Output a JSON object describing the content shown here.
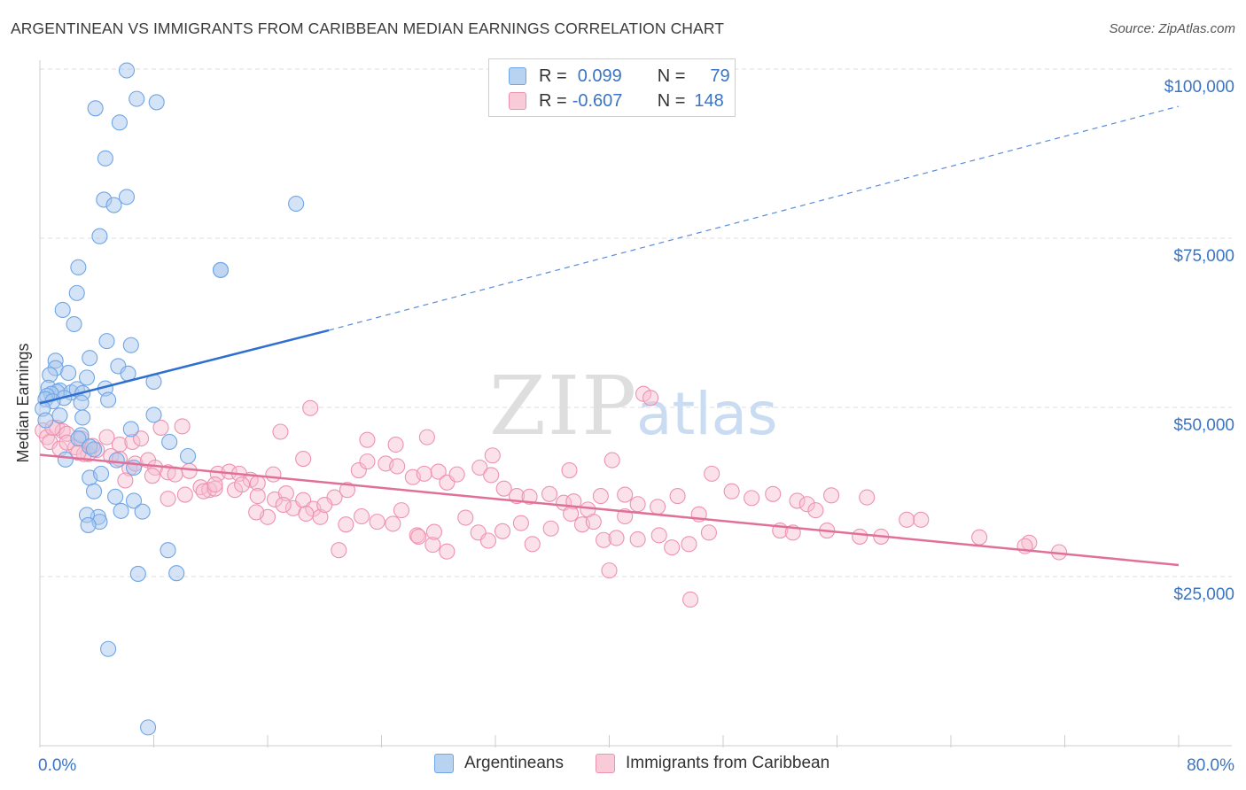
{
  "header": {
    "title": "ARGENTINEAN VS IMMIGRANTS FROM CARIBBEAN MEDIAN EARNINGS CORRELATION CHART",
    "source": "Source: ZipAtlas.com"
  },
  "watermark": {
    "zip": "ZIP",
    "atlas": "atlas"
  },
  "legend": {
    "rows": [
      {
        "r_label": "R =",
        "r_value": "0.099",
        "n_label": "N =",
        "n_value": "79",
        "color": "#6fa6e6"
      },
      {
        "r_label": "R =",
        "r_value": "-0.607",
        "n_label": "N =",
        "n_value": "148",
        "color": "#f4a3bd"
      }
    ]
  },
  "colors": {
    "blue_fill": "#a9c8ee",
    "blue_stroke": "#6fa6e6",
    "blue_line": "#2f6fd0",
    "pink_fill": "#f7bfd0",
    "pink_stroke": "#ee92b1",
    "pink_line": "#e0709a",
    "axis_text": "#3a74c4",
    "grid": "#dddddd"
  },
  "chart_data": {
    "type": "scatter",
    "title": "ARGENTINEAN VS IMMIGRANTS FROM CARIBBEAN MEDIAN EARNINGS CORRELATION CHART",
    "xlabel": "",
    "ylabel": "Median Earnings",
    "xlim": [
      0,
      80
    ],
    "ylim": [
      0,
      100000
    ],
    "x_tick_labels": [
      "0.0%",
      "80.0%"
    ],
    "y_ticks": [
      25000,
      50000,
      75000,
      100000
    ],
    "y_tick_labels": [
      "$25,000",
      "$50,000",
      "$75,000",
      "$100,000"
    ],
    "grid": true,
    "legend_position": "top-center",
    "series": [
      {
        "name": "Argentineans",
        "R": 0.099,
        "N": 79,
        "trend": {
          "x_solid": [
            0,
            20.3
          ],
          "y_solid": [
            50600,
            61400
          ],
          "x_dashed": [
            20.3,
            80
          ],
          "y_dashed": [
            61400,
            94500
          ]
        },
        "points": [
          [
            6.1,
            99800
          ],
          [
            6.8,
            95600
          ],
          [
            8.2,
            95100
          ],
          [
            3.9,
            94200
          ],
          [
            5.6,
            92100
          ],
          [
            4.6,
            86800
          ],
          [
            4.5,
            80700
          ],
          [
            6.1,
            81100
          ],
          [
            5.2,
            79900
          ],
          [
            18.0,
            80100
          ],
          [
            4.2,
            75300
          ],
          [
            12.7,
            70300
          ],
          [
            12.7,
            70300
          ],
          [
            2.7,
            70700
          ],
          [
            2.6,
            66900
          ],
          [
            1.6,
            64400
          ],
          [
            2.4,
            62300
          ],
          [
            4.7,
            59800
          ],
          [
            6.4,
            59200
          ],
          [
            3.5,
            57300
          ],
          [
            1.1,
            56900
          ],
          [
            5.5,
            56100
          ],
          [
            1.1,
            55800
          ],
          [
            2.0,
            55100
          ],
          [
            0.7,
            54800
          ],
          [
            6.2,
            55000
          ],
          [
            3.3,
            54400
          ],
          [
            8.0,
            53800
          ],
          [
            0.6,
            52900
          ],
          [
            4.6,
            52800
          ],
          [
            1.4,
            52500
          ],
          [
            2.2,
            52200
          ],
          [
            1.2,
            52300
          ],
          [
            2.6,
            52700
          ],
          [
            0.8,
            52000
          ],
          [
            3.0,
            52100
          ],
          [
            0.5,
            51700
          ],
          [
            1.7,
            51400
          ],
          [
            4.8,
            51100
          ],
          [
            0.4,
            51200
          ],
          [
            0.9,
            50900
          ],
          [
            2.9,
            50700
          ],
          [
            0.2,
            49800
          ],
          [
            1.4,
            48800
          ],
          [
            8.0,
            48900
          ],
          [
            3.0,
            48500
          ],
          [
            0.4,
            48100
          ],
          [
            6.4,
            46800
          ],
          [
            2.9,
            45900
          ],
          [
            2.7,
            45400
          ],
          [
            9.1,
            44900
          ],
          [
            3.5,
            44200
          ],
          [
            3.8,
            43800
          ],
          [
            10.4,
            42800
          ],
          [
            5.4,
            42200
          ],
          [
            1.8,
            42300
          ],
          [
            6.6,
            41100
          ],
          [
            3.5,
            39600
          ],
          [
            4.3,
            40200
          ],
          [
            3.8,
            37600
          ],
          [
            6.6,
            36200
          ],
          [
            5.3,
            36800
          ],
          [
            4.1,
            33800
          ],
          [
            4.2,
            33100
          ],
          [
            3.3,
            34100
          ],
          [
            3.4,
            32600
          ],
          [
            5.7,
            34700
          ],
          [
            7.2,
            34600
          ],
          [
            9.0,
            28900
          ],
          [
            9.6,
            25500
          ],
          [
            6.9,
            25400
          ],
          [
            4.8,
            14300
          ],
          [
            7.6,
            2700
          ]
        ]
      },
      {
        "name": "Immigrants from Caribbean",
        "R": -0.607,
        "N": 148,
        "trend": {
          "x_solid": [
            0,
            80
          ],
          "y_solid": [
            43000,
            26700
          ]
        },
        "points": [
          [
            0.2,
            46600
          ],
          [
            0.5,
            45600
          ],
          [
            1.2,
            47000
          ],
          [
            1.6,
            46500
          ],
          [
            0.7,
            44900
          ],
          [
            1.9,
            46100
          ],
          [
            2.5,
            44100
          ],
          [
            2.9,
            45400
          ],
          [
            3.4,
            43100
          ],
          [
            4.7,
            45600
          ],
          [
            5.6,
            44500
          ],
          [
            6.5,
            44900
          ],
          [
            7.1,
            45400
          ],
          [
            8.5,
            47000
          ],
          [
            10.0,
            47200
          ],
          [
            3.1,
            43100
          ],
          [
            4.0,
            43700
          ],
          [
            5.0,
            42800
          ],
          [
            5.6,
            42400
          ],
          [
            6.3,
            41000
          ],
          [
            6.7,
            41700
          ],
          [
            7.6,
            42200
          ],
          [
            8.1,
            41100
          ],
          [
            9.0,
            40400
          ],
          [
            10.5,
            40600
          ],
          [
            11.3,
            38200
          ],
          [
            11.9,
            37800
          ],
          [
            12.5,
            40200
          ],
          [
            13.3,
            40500
          ],
          [
            14.0,
            40200
          ],
          [
            14.8,
            39300
          ],
          [
            15.3,
            38800
          ],
          [
            16.4,
            40100
          ],
          [
            7.9,
            39900
          ],
          [
            9.0,
            36500
          ],
          [
            10.2,
            37100
          ],
          [
            11.5,
            37600
          ],
          [
            12.3,
            38000
          ],
          [
            13.7,
            37800
          ],
          [
            14.2,
            38600
          ],
          [
            15.3,
            36900
          ],
          [
            16.0,
            33800
          ],
          [
            16.5,
            36400
          ],
          [
            17.3,
            37300
          ],
          [
            17.8,
            35100
          ],
          [
            18.5,
            36300
          ],
          [
            19.2,
            35000
          ],
          [
            19.7,
            33800
          ],
          [
            20.7,
            36700
          ],
          [
            21.6,
            37800
          ],
          [
            22.4,
            40700
          ],
          [
            23.0,
            42000
          ],
          [
            24.3,
            41700
          ],
          [
            25.1,
            41300
          ],
          [
            26.2,
            39700
          ],
          [
            27.0,
            40200
          ],
          [
            28.0,
            40500
          ],
          [
            28.6,
            38900
          ],
          [
            29.3,
            40100
          ],
          [
            30.9,
            41100
          ],
          [
            31.7,
            40000
          ],
          [
            32.6,
            38000
          ],
          [
            33.5,
            36900
          ],
          [
            34.4,
            36800
          ],
          [
            35.8,
            37200
          ],
          [
            36.8,
            35900
          ],
          [
            37.5,
            36100
          ],
          [
            38.5,
            34900
          ],
          [
            39.4,
            36900
          ],
          [
            41.1,
            37100
          ],
          [
            42.0,
            35700
          ],
          [
            43.4,
            35300
          ],
          [
            44.8,
            36900
          ],
          [
            46.3,
            34200
          ],
          [
            48.6,
            37600
          ],
          [
            50.0,
            36600
          ],
          [
            51.5,
            37200
          ],
          [
            53.2,
            36200
          ],
          [
            53.9,
            35700
          ],
          [
            54.5,
            34800
          ],
          [
            55.6,
            37000
          ],
          [
            58.1,
            36700
          ],
          [
            16.9,
            46400
          ],
          [
            18.5,
            42400
          ],
          [
            19.0,
            49900
          ],
          [
            23.0,
            45200
          ],
          [
            25.0,
            44500
          ],
          [
            27.2,
            45600
          ],
          [
            31.8,
            42900
          ],
          [
            37.2,
            40700
          ],
          [
            40.2,
            42200
          ],
          [
            42.4,
            52000
          ],
          [
            42.9,
            51400
          ],
          [
            47.2,
            40200
          ],
          [
            20.0,
            35600
          ],
          [
            21.5,
            32700
          ],
          [
            22.6,
            33900
          ],
          [
            23.7,
            33100
          ],
          [
            24.8,
            32800
          ],
          [
            25.4,
            34800
          ],
          [
            26.5,
            31100
          ],
          [
            27.6,
            29700
          ],
          [
            28.6,
            28700
          ],
          [
            29.9,
            33700
          ],
          [
            30.8,
            31500
          ],
          [
            31.5,
            30300
          ],
          [
            32.5,
            31700
          ],
          [
            33.8,
            32900
          ],
          [
            34.6,
            29800
          ],
          [
            35.9,
            32100
          ],
          [
            37.3,
            34300
          ],
          [
            38.1,
            32700
          ],
          [
            38.9,
            33100
          ],
          [
            39.6,
            30400
          ],
          [
            40.5,
            30700
          ],
          [
            41.1,
            33900
          ],
          [
            42.0,
            30500
          ],
          [
            43.5,
            31100
          ],
          [
            44.4,
            29300
          ],
          [
            45.6,
            29800
          ],
          [
            47.0,
            31500
          ],
          [
            52.0,
            31800
          ],
          [
            52.9,
            31500
          ],
          [
            55.3,
            31800
          ],
          [
            57.6,
            30900
          ],
          [
            59.1,
            30900
          ],
          [
            60.9,
            33400
          ],
          [
            61.9,
            33400
          ],
          [
            66.0,
            30800
          ],
          [
            69.5,
            30000
          ],
          [
            69.2,
            29500
          ],
          [
            71.6,
            28600
          ],
          [
            15.2,
            34500
          ],
          [
            17.1,
            35600
          ],
          [
            18.7,
            34300
          ],
          [
            21.0,
            28900
          ],
          [
            26.6,
            30900
          ],
          [
            27.7,
            31600
          ],
          [
            40.0,
            25900
          ],
          [
            45.7,
            21600
          ],
          [
            1.4,
            43900
          ],
          [
            2.7,
            43300
          ],
          [
            3.7,
            44300
          ],
          [
            0.9,
            47000
          ],
          [
            1.9,
            44800
          ],
          [
            6.0,
            39200
          ],
          [
            9.5,
            40100
          ],
          [
            12.3,
            38600
          ]
        ]
      }
    ]
  },
  "bottom_legend": {
    "items": [
      {
        "label": "Argentineans",
        "color": "#a9c8ee"
      },
      {
        "label": "Immigrants from Caribbean",
        "color": "#f7bfd0"
      }
    ]
  }
}
